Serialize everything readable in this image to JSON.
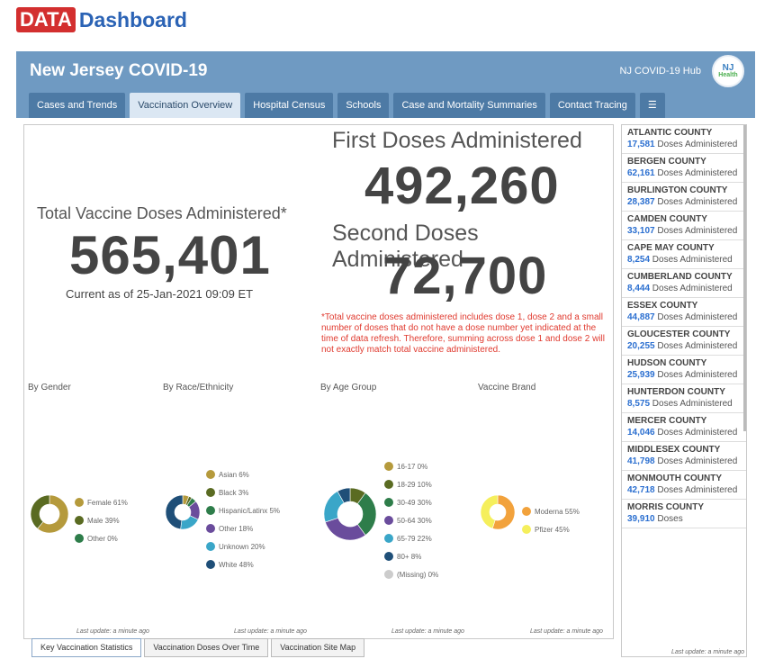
{
  "logo": {
    "data": "DATA",
    "dashboard": "Dashboard"
  },
  "header": {
    "title": "New Jersey COVID-19",
    "hub": "NJ COVID-19 Hub",
    "hub_logo_line1": "NJ",
    "hub_logo_line2": "Health"
  },
  "tabs": [
    {
      "label": "Cases and Trends"
    },
    {
      "label": "Vaccination Overview"
    },
    {
      "label": "Hospital Census"
    },
    {
      "label": "Schools"
    },
    {
      "label": "Case and Mortality Summaries"
    },
    {
      "label": "Contact Tracing"
    },
    {
      "label": "☰"
    }
  ],
  "main": {
    "total_label": "Total Vaccine Doses Administered*",
    "total_value": "565,401",
    "current": "Current as of 25-Jan-2021 09:09 ET",
    "first_label": "First Doses Administered",
    "first_value": "492,260",
    "second_label": "Second Doses Administered",
    "second_value": "72,700",
    "footnote": "*Total vaccine doses administered includes dose 1, dose 2 and a small number of doses that do not have a dose number yet indicated at the time of data refresh. Therefore, summing across dose 1 and dose 2 will not exactly match total vaccine administered."
  },
  "sections": {
    "gender": "By Gender",
    "race": "By Race/Ethnicity",
    "age": "By Age Group",
    "brand": "Vaccine Brand"
  },
  "last_update": "Last update: a minute ago",
  "colors": {
    "olive": "#b59a3c",
    "darkgreen": "#5a6b22",
    "green": "#2e7d4a",
    "purple": "#6a4c9c",
    "teal": "#3aa6c8",
    "navy": "#1f4f78",
    "grey": "#cccccc",
    "orange": "#f2a23c",
    "yellow": "#f5ef5c"
  },
  "chart_data": [
    {
      "type": "pie",
      "title": "By Gender",
      "series": [
        {
          "name": "Female",
          "label": "Female  61%",
          "value": 61,
          "color": "#b59a3c"
        },
        {
          "name": "Male",
          "label": "Male  39%",
          "value": 39,
          "color": "#5a6b22"
        },
        {
          "name": "Other",
          "label": "Other  0%",
          "value": 0,
          "color": "#2e7d4a"
        }
      ]
    },
    {
      "type": "pie",
      "title": "By Race/Ethnicity",
      "series": [
        {
          "name": "Asian",
          "label": "Asian  6%",
          "value": 6,
          "color": "#b59a3c"
        },
        {
          "name": "Black",
          "label": "Black  3%",
          "value": 3,
          "color": "#5a6b22"
        },
        {
          "name": "Hispanic/Latinx",
          "label": "Hispanic/Latinx  5%",
          "value": 5,
          "color": "#2e7d4a"
        },
        {
          "name": "Other",
          "label": "Other  18%",
          "value": 18,
          "color": "#6a4c9c"
        },
        {
          "name": "Unknown",
          "label": "Unknown  20%",
          "value": 20,
          "color": "#3aa6c8"
        },
        {
          "name": "White",
          "label": "White  48%",
          "value": 48,
          "color": "#1f4f78"
        }
      ]
    },
    {
      "type": "pie",
      "title": "By Age Group",
      "series": [
        {
          "name": "16-17",
          "label": "16-17  0%",
          "value": 0,
          "color": "#b59a3c"
        },
        {
          "name": "18-29",
          "label": "18-29  10%",
          "value": 10,
          "color": "#5a6b22"
        },
        {
          "name": "30-49",
          "label": "30-49  30%",
          "value": 30,
          "color": "#2e7d4a"
        },
        {
          "name": "50-64",
          "label": "50-64  30%",
          "value": 30,
          "color": "#6a4c9c"
        },
        {
          "name": "65-79",
          "label": "65-79  22%",
          "value": 22,
          "color": "#3aa6c8"
        },
        {
          "name": "80+",
          "label": "80+  8%",
          "value": 8,
          "color": "#1f4f78"
        },
        {
          "name": "(Missing)",
          "label": "(Missing)  0%",
          "value": 0,
          "color": "#cccccc"
        }
      ]
    },
    {
      "type": "pie",
      "title": "Vaccine Brand",
      "series": [
        {
          "name": "Moderna",
          "label": "Moderna  55%",
          "value": 55,
          "color": "#f2a23c"
        },
        {
          "name": "Pfizer",
          "label": "Pfizer  45%",
          "value": 45,
          "color": "#f5ef5c"
        }
      ]
    }
  ],
  "bottom_tabs": [
    {
      "label": "Key Vaccination Statistics"
    },
    {
      "label": "Vaccination Doses Over Time"
    },
    {
      "label": "Vaccination Site Map"
    }
  ],
  "counties": [
    {
      "name": "ATLANTIC COUNTY",
      "value": "17,581",
      "text": "Doses Administered"
    },
    {
      "name": "BERGEN COUNTY",
      "value": "62,161",
      "text": "Doses Administered"
    },
    {
      "name": "BURLINGTON COUNTY",
      "value": "28,387",
      "text": "Doses Administered"
    },
    {
      "name": "CAMDEN COUNTY",
      "value": "33,107",
      "text": "Doses Administered"
    },
    {
      "name": "CAPE MAY COUNTY",
      "value": "8,254",
      "text": "Doses Administered"
    },
    {
      "name": "CUMBERLAND COUNTY",
      "value": "8,444",
      "text": "Doses Administered"
    },
    {
      "name": "ESSEX COUNTY",
      "value": "44,887",
      "text": "Doses Administered"
    },
    {
      "name": "GLOUCESTER COUNTY",
      "value": "20,255",
      "text": "Doses Administered"
    },
    {
      "name": "HUDSON COUNTY",
      "value": "25,939",
      "text": "Doses Administered"
    },
    {
      "name": "HUNTERDON COUNTY",
      "value": "8,575",
      "text": "Doses Administered"
    },
    {
      "name": "MERCER COUNTY",
      "value": "14,046",
      "text": "Doses Administered"
    },
    {
      "name": "MIDDLESEX COUNTY",
      "value": "41,798",
      "text": "Doses Administered"
    },
    {
      "name": "MONMOUTH COUNTY",
      "value": "42,718",
      "text": "Doses Administered"
    },
    {
      "name": "MORRIS COUNTY",
      "value": "39,910",
      "text": "Doses"
    }
  ]
}
